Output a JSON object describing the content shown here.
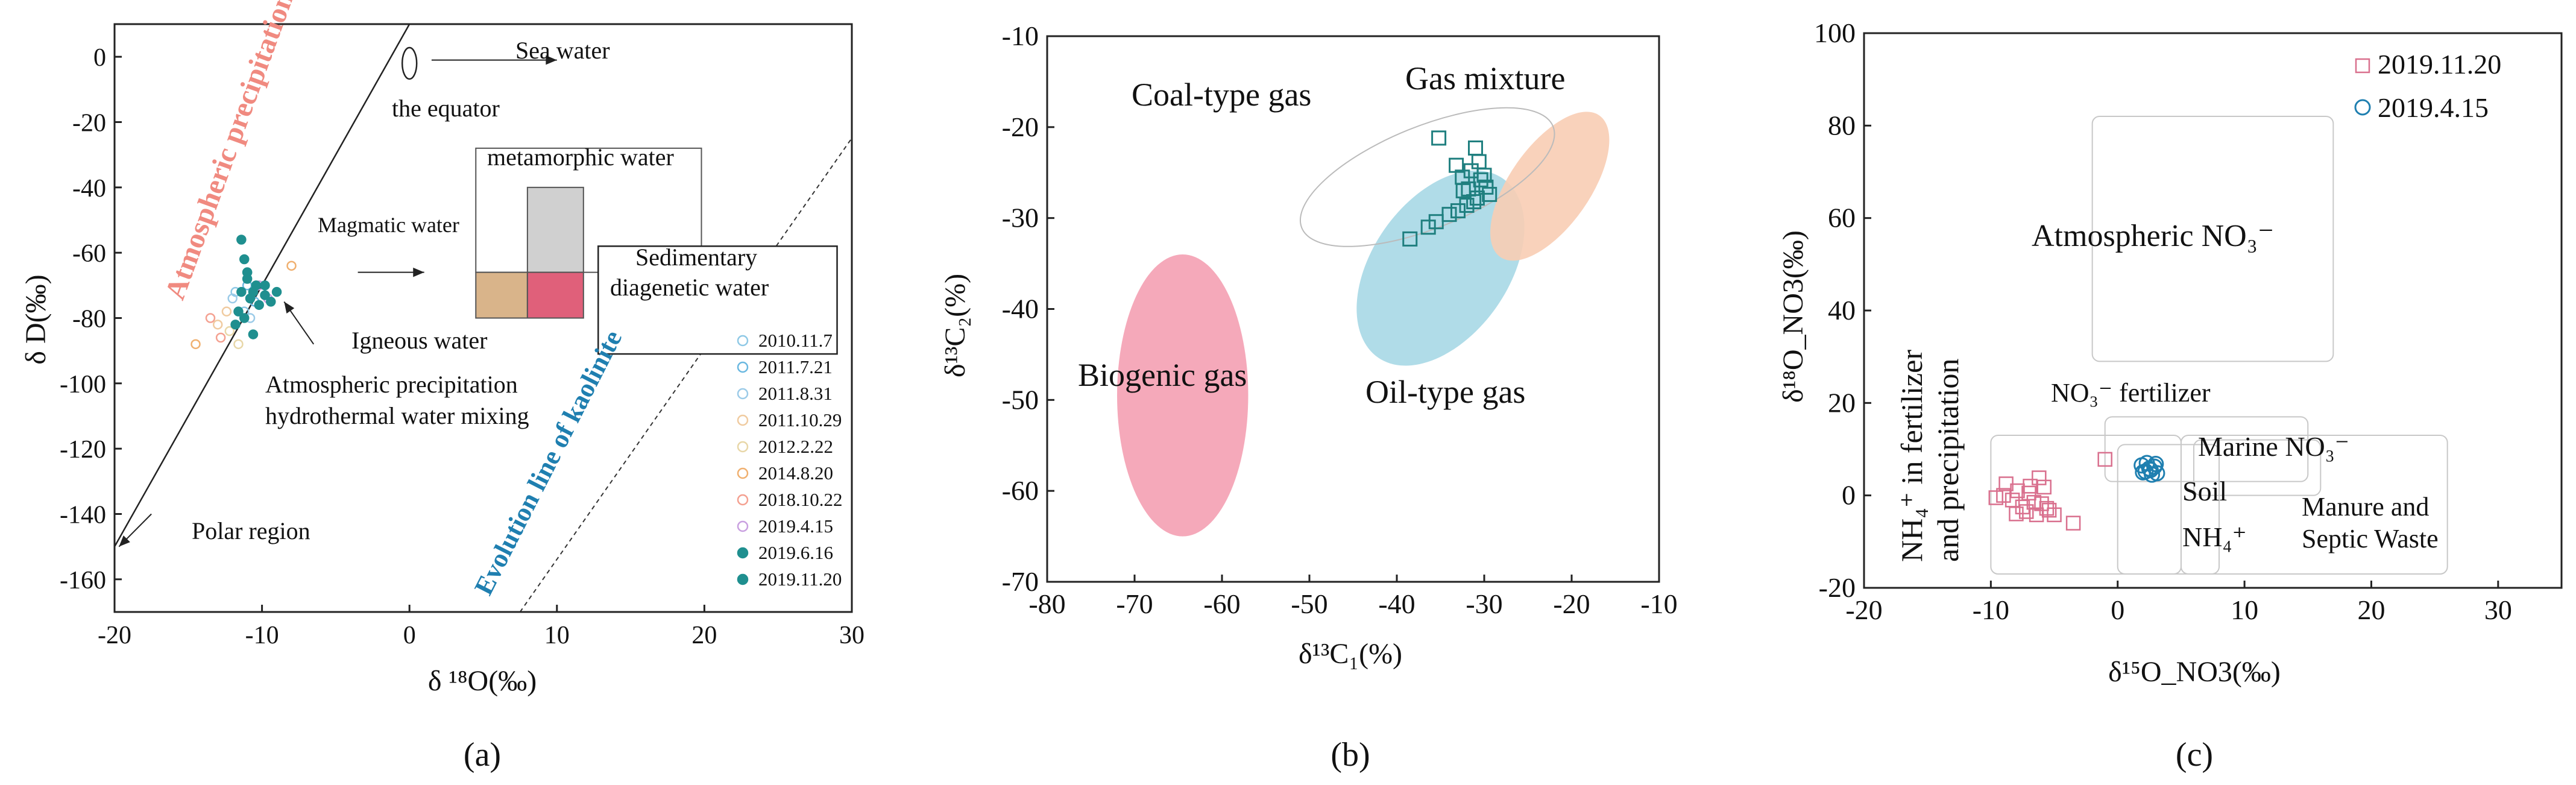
{
  "figure": {
    "panel_labels": [
      "(a)",
      "(b)",
      "(c)"
    ]
  },
  "chart_data": [
    {
      "panel": "(a)",
      "type": "scatter",
      "xlabel": "δ ¹⁸O(‰)",
      "ylabel": "δ D(‰)",
      "xlim": [
        -20,
        30
      ],
      "ylim": [
        -170,
        10
      ],
      "xticks": [
        -20,
        -10,
        0,
        10,
        20,
        30
      ],
      "yticks": [
        0,
        -20,
        -40,
        -60,
        -80,
        -100,
        -120,
        -140,
        -160
      ],
      "colors": {
        "teal": "#1f8f8f",
        "salmon": "#f08a80",
        "blue": "#1f7fb0",
        "pink": "#e0607a",
        "tan": "#d9b48a",
        "grey": "#d0d0d0",
        "orange": "#f0b070"
      },
      "annotations": {
        "sea_water": "Sea water",
        "equator": "the equator",
        "atm_precip": "Atmospheric precipitation",
        "metamorphic": "metamorphic water",
        "magmatic": "Magmatic water",
        "sedimentary": "Sedimentary",
        "diagenetic": "diagenetic water",
        "igneous": "Igneous water",
        "mixing_1": "Atmospheric precipitation",
        "mixing_2": "hydrothermal water mixing",
        "polar": "Polar region",
        "kaolinite": "Evolution line of kaolinite"
      },
      "legend": [
        "2010.11.7",
        "2011.7.21",
        "2011.8.31",
        "2011.10.29",
        "2012.2.22",
        "2014.8.20",
        "2018.10.22",
        "2019.4.15",
        "2019.6.16",
        "2019.11.20"
      ],
      "series": [
        {
          "name": "2010.11.7",
          "x": [
            -11.8,
            -11.2
          ],
          "y": [
            -72,
            -78
          ]
        },
        {
          "name": "2011.7.21",
          "x": [
            -11.0,
            -10.5
          ],
          "y": [
            -70,
            -75
          ]
        },
        {
          "name": "2011.8.31",
          "x": [
            -12.0,
            -10.8
          ],
          "y": [
            -74,
            -80
          ]
        },
        {
          "name": "2011.10.29",
          "x": [
            -13.0,
            -12.4
          ],
          "y": [
            -82,
            -78
          ]
        },
        {
          "name": "2012.2.22",
          "x": [
            -12.2,
            -11.6
          ],
          "y": [
            -84,
            -88
          ]
        },
        {
          "name": "2014.8.20",
          "x": [
            -8.0,
            -14.5
          ],
          "y": [
            -64,
            -88
          ]
        },
        {
          "name": "2018.10.22",
          "x": [
            -13.5,
            -12.8
          ],
          "y": [
            -80,
            -86
          ]
        },
        {
          "name": "2019.4.15",
          "x": [
            -10.2,
            -9.6
          ],
          "y": [
            -70,
            -74
          ]
        },
        {
          "name": "2019.6.16",
          "x": [
            -11.0,
            -10.6,
            -10.2,
            -9.8
          ],
          "y": [
            -66,
            -72,
            -76,
            -70
          ]
        },
        {
          "name": "2019.11.20",
          "x": [
            -11.4,
            -11.2,
            -11.0,
            -10.8,
            -11.6,
            -11.8,
            -10.6,
            -11.2,
            -11.4,
            -11.0,
            -10.4,
            -9.8,
            -9.4,
            -9.0
          ],
          "y": [
            -56,
            -62,
            -68,
            -74,
            -78,
            -82,
            -85,
            -80,
            -72,
            -66,
            -70,
            -73,
            -75,
            -72
          ]
        }
      ]
    },
    {
      "panel": "(b)",
      "type": "scatter",
      "xlabel": "δ¹³C₁(%)",
      "ylabel": "δ¹³C₂(%)",
      "xlim": [
        -80,
        -10
      ],
      "ylim": [
        -70,
        -10
      ],
      "xticks": [
        -80,
        -70,
        -60,
        -50,
        -40,
        -30,
        -20,
        -10
      ],
      "yticks": [
        -10,
        -20,
        -30,
        -40,
        -50,
        -60,
        -70
      ],
      "annotations": {
        "coal": "Coal-type gas",
        "mixture": "Gas mixture",
        "biogenic": "Biogenic gas",
        "oil": "Oil-type gas"
      },
      "regions": [
        {
          "name": "Biogenic gas",
          "cx": -64.5,
          "cy": -49.5,
          "rx": 7.5,
          "ry": 15.5,
          "angle": 0,
          "color": "#f4a0b2"
        },
        {
          "name": "Oil-type gas",
          "cx": -35.0,
          "cy": -35.5,
          "rx": 7.8,
          "ry": 12.0,
          "angle": 35,
          "color": "#a7d8e6"
        },
        {
          "name": "Gas mixture",
          "cx": -22.5,
          "cy": -26.5,
          "rx": 4.6,
          "ry": 9.5,
          "angle": 35,
          "color": "#f8cdb4"
        },
        {
          "name": "Coal-type gas",
          "cx": -36.5,
          "cy": -25.5,
          "rx": 15.5,
          "ry": 5.6,
          "angle": -22,
          "color": "none"
        }
      ],
      "series": [
        {
          "name": "samples",
          "x": [
            -35.2,
            -33.2,
            -32.5,
            -31.8,
            -31.0,
            -30.6,
            -30.0,
            -29.8,
            -30.8,
            -32.0,
            -33.0,
            -34.0,
            -35.5,
            -36.4,
            -38.5,
            -31.5,
            -30.4,
            -29.4,
            -31.2,
            -32.4
          ],
          "y": [
            -21.2,
            -24.2,
            -25.5,
            -26.8,
            -22.3,
            -23.8,
            -25.3,
            -26.6,
            -27.8,
            -28.6,
            -29.2,
            -29.6,
            -30.4,
            -31.0,
            -32.3,
            -24.8,
            -25.8,
            -27.4,
            -28.2,
            -27.0
          ]
        }
      ]
    },
    {
      "panel": "(c)",
      "type": "scatter",
      "xlabel": "δ¹⁵O_NO3(‰)",
      "ylabel": "δ¹⁸O_NO3(‰)",
      "xlim": [
        -20,
        35
      ],
      "ylim": [
        -20,
        100
      ],
      "xticks": [
        -20,
        -10,
        0,
        10,
        20,
        30
      ],
      "yticks": [
        100,
        80,
        60,
        40,
        20,
        0,
        -20
      ],
      "legend": [
        "2019.11.20",
        "2019.4.15"
      ],
      "annotations": {
        "atm_no3": "Atmospheric NO₃⁻",
        "no3_fert": "NO₃⁻ fertilizer",
        "marine": "Marine NO₃⁻",
        "soil": "Soil",
        "nh4": "NH₄⁺",
        "manure_1": "Manure and",
        "manure_2": "Septic Waste",
        "nh4_fert_1": "NH₄⁺ in fertilizer",
        "nh4_fert_2": "and precipitation"
      },
      "regions": [
        {
          "name": "Atmospheric NO3-",
          "x0": -2,
          "x1": 17,
          "y0": 29,
          "y1": 82
        },
        {
          "name": "NO3- fertilizer",
          "x0": -1,
          "x1": 15,
          "y0": 3,
          "y1": 17
        },
        {
          "name": "Marine NO3-",
          "x0": 6,
          "x1": 16,
          "y0": 0,
          "y1": 12
        },
        {
          "name": "NH4+ in fertilizer and precipitation",
          "x0": -10,
          "x1": 5,
          "y0": -17,
          "y1": 13
        },
        {
          "name": "Soil NH4+",
          "x0": 0,
          "x1": 8,
          "y0": -17,
          "y1": 11
        },
        {
          "name": "Manure and Septic Waste",
          "x0": 5,
          "x1": 26,
          "y0": -17,
          "y1": 13
        }
      ],
      "series": [
        {
          "name": "2019.11.20",
          "x": [
            -9.6,
            -8.8,
            -8.3,
            -7.9,
            -7.5,
            -7.0,
            -6.6,
            -6.2,
            -5.8,
            -5.4,
            -5.0,
            -8.0,
            -7.2,
            -6.4,
            -5.6,
            -3.5,
            -1.0,
            -9.0,
            -6.9,
            -6.0
          ],
          "y": [
            -0.5,
            2.5,
            -1.0,
            1.0,
            -2.5,
            0.5,
            -1.5,
            3.8,
            1.8,
            -3.2,
            -4.2,
            -4.0,
            -3.5,
            -4.2,
            -2.8,
            -6.0,
            7.8,
            0.0,
            2.0,
            -1.8
          ]
        },
        {
          "name": "2019.4.15",
          "x": [
            1.9,
            2.3,
            2.6,
            2.9,
            3.1,
            2.2,
            2.7,
            3.0,
            2.5,
            2.0
          ],
          "y": [
            6.5,
            7.0,
            5.5,
            6.2,
            4.8,
            5.2,
            4.5,
            6.8,
            5.8,
            5.0
          ]
        }
      ]
    }
  ]
}
